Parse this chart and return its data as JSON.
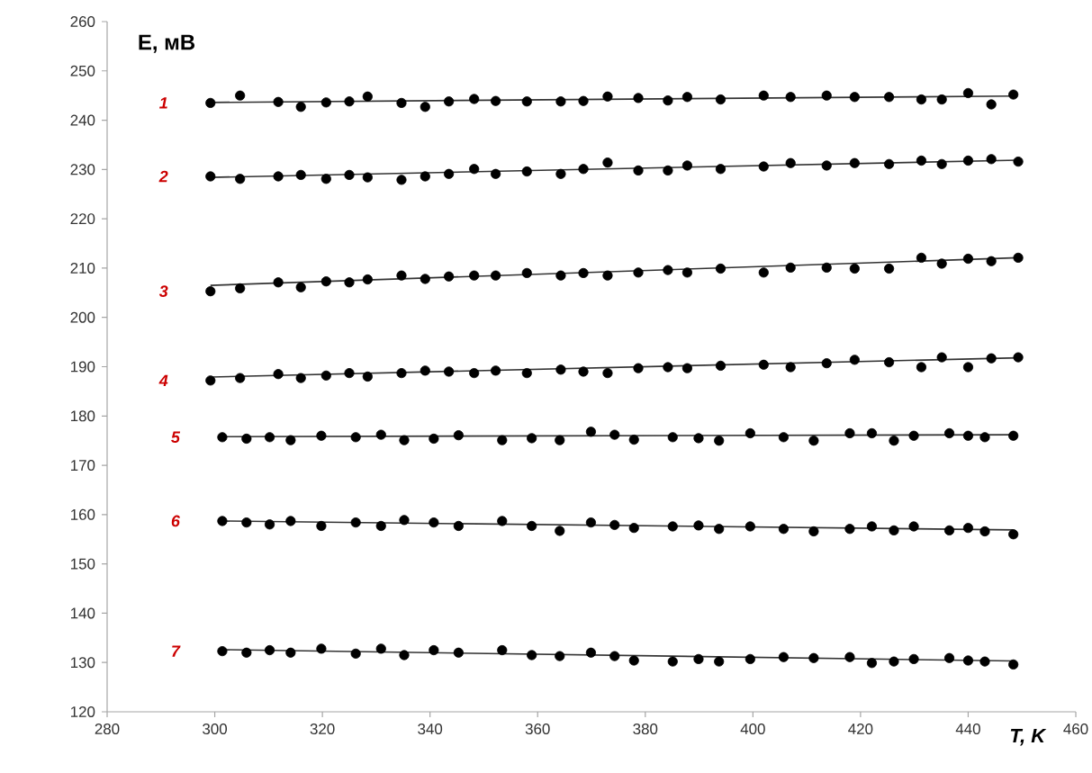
{
  "chart_data": {
    "type": "scatter",
    "xlabel": "T,  K",
    "ylabel": "E, мВ",
    "xlim": [
      280,
      460
    ],
    "ylim": [
      120,
      260
    ],
    "xticks": [
      280,
      300,
      320,
      340,
      360,
      380,
      400,
      420,
      440,
      460
    ],
    "yticks": [
      120,
      130,
      140,
      150,
      160,
      170,
      180,
      190,
      200,
      210,
      220,
      230,
      240,
      250,
      260
    ],
    "series": [
      {
        "name": "1",
        "color": "#000000",
        "marker": "circle",
        "x": [
          299.2,
          304.7,
          311.8,
          316.0,
          320.7,
          325.0,
          328.4,
          334.7,
          339.1,
          343.5,
          348.2,
          352.2,
          358.0,
          364.3,
          368.5,
          373.0,
          378.7,
          384.2,
          387.8,
          394.0,
          402.0,
          407.0,
          413.7,
          418.9,
          425.3,
          431.3,
          435.1,
          440.0,
          444.3,
          448.4
        ],
        "values": [
          243.5,
          245.0,
          243.7,
          242.7,
          243.6,
          243.8,
          244.8,
          243.5,
          242.7,
          243.8,
          244.3,
          243.9,
          243.8,
          243.8,
          243.9,
          244.8,
          244.5,
          244.0,
          244.7,
          244.2,
          245.0,
          244.7,
          245.0,
          244.7,
          244.7,
          244.2,
          244.2,
          245.5,
          243.2,
          245.2
        ]
      },
      {
        "name": "2",
        "color": "#000000",
        "marker": "circle",
        "x": [
          299.2,
          304.7,
          311.8,
          316.0,
          320.7,
          325.0,
          328.4,
          334.7,
          339.1,
          343.5,
          348.2,
          352.2,
          358.0,
          364.3,
          368.5,
          373.0,
          378.7,
          384.2,
          387.8,
          394.0,
          402.0,
          407.0,
          413.7,
          418.9,
          425.3,
          431.3,
          435.1,
          440.0,
          444.3,
          449.3
        ],
        "values": [
          228.6,
          228.1,
          228.6,
          228.9,
          228.1,
          228.9,
          228.4,
          227.9,
          228.6,
          229.1,
          230.1,
          229.1,
          229.6,
          229.1,
          230.1,
          231.4,
          229.8,
          229.8,
          230.8,
          230.1,
          230.6,
          231.3,
          230.8,
          231.3,
          231.1,
          231.8,
          231.1,
          231.8,
          232.1,
          231.6
        ]
      },
      {
        "name": "3",
        "color": "#000000",
        "marker": "circle",
        "x": [
          299.2,
          304.7,
          311.8,
          316.0,
          320.7,
          325.0,
          328.4,
          334.7,
          339.1,
          343.5,
          348.2,
          352.2,
          358.0,
          364.3,
          368.5,
          373.0,
          378.7,
          384.2,
          387.8,
          394.0,
          402.0,
          407.0,
          413.7,
          418.9,
          425.3,
          431.3,
          435.1,
          440.0,
          444.3,
          449.3
        ],
        "values": [
          205.3,
          205.9,
          207.1,
          206.1,
          207.3,
          207.1,
          207.7,
          208.5,
          207.8,
          208.3,
          208.5,
          208.5,
          209.0,
          208.5,
          209.0,
          208.5,
          209.1,
          209.6,
          209.1,
          209.9,
          209.1,
          210.1,
          210.1,
          209.9,
          209.9,
          212.1,
          210.9,
          211.9,
          211.4,
          212.1
        ]
      },
      {
        "name": "4",
        "color": "#000000",
        "marker": "circle",
        "x": [
          299.2,
          304.7,
          311.8,
          316.0,
          320.7,
          325.0,
          328.4,
          334.7,
          339.1,
          343.5,
          348.2,
          352.2,
          358.0,
          364.3,
          368.5,
          373.0,
          378.7,
          384.2,
          387.8,
          394.0,
          402.0,
          407.0,
          413.7,
          418.9,
          425.3,
          431.3,
          435.1,
          440.0,
          444.3,
          449.3
        ],
        "values": [
          187.2,
          187.7,
          188.5,
          187.7,
          188.2,
          188.7,
          188.0,
          188.7,
          189.2,
          189.0,
          188.7,
          189.2,
          188.7,
          189.4,
          189.0,
          188.7,
          189.7,
          189.9,
          189.7,
          190.2,
          190.4,
          189.9,
          190.7,
          191.4,
          190.9,
          189.9,
          191.9,
          189.9,
          191.7,
          191.9
        ]
      },
      {
        "name": "5",
        "color": "#000000",
        "marker": "circle",
        "x": [
          301.4,
          305.9,
          310.2,
          314.1,
          319.8,
          326.2,
          330.9,
          335.2,
          340.7,
          345.3,
          353.4,
          358.9,
          364.1,
          369.9,
          374.3,
          377.9,
          385.1,
          389.9,
          393.7,
          399.5,
          405.7,
          411.3,
          418.0,
          422.1,
          426.2,
          429.9,
          436.5,
          440.0,
          443.1,
          448.4
        ],
        "values": [
          175.7,
          175.4,
          175.7,
          175.1,
          176.0,
          175.7,
          176.2,
          175.1,
          175.4,
          176.1,
          175.1,
          175.5,
          175.1,
          176.8,
          176.2,
          175.2,
          175.7,
          175.5,
          175.0,
          176.5,
          175.7,
          175.0,
          176.5,
          176.5,
          175.0,
          176.0,
          176.5,
          176.0,
          175.7,
          176.0
        ]
      },
      {
        "name": "6",
        "color": "#000000",
        "marker": "circle",
        "x": [
          301.4,
          305.9,
          310.2,
          314.1,
          319.8,
          326.2,
          330.9,
          335.2,
          340.7,
          345.3,
          353.4,
          358.9,
          364.1,
          369.9,
          374.3,
          377.9,
          385.1,
          389.9,
          393.7,
          399.5,
          405.7,
          411.3,
          418.0,
          422.1,
          426.2,
          429.9,
          436.5,
          440.0,
          443.1,
          448.4
        ],
        "values": [
          158.7,
          158.4,
          158.0,
          158.7,
          157.7,
          158.4,
          157.7,
          158.9,
          158.4,
          157.7,
          158.7,
          157.7,
          156.7,
          158.4,
          157.9,
          157.3,
          157.6,
          157.8,
          157.1,
          157.6,
          157.1,
          156.6,
          157.1,
          157.6,
          156.8,
          157.6,
          156.8,
          157.3,
          156.6,
          156.0
        ]
      },
      {
        "name": "7",
        "color": "#000000",
        "marker": "circle",
        "x": [
          301.4,
          305.9,
          310.2,
          314.1,
          319.8,
          326.2,
          330.9,
          335.2,
          340.7,
          345.3,
          353.4,
          358.9,
          364.1,
          369.9,
          374.3,
          377.9,
          385.1,
          389.9,
          393.7,
          399.5,
          405.7,
          411.3,
          418.0,
          422.1,
          426.2,
          429.9,
          436.5,
          440.0,
          443.1,
          448.4
        ],
        "values": [
          132.3,
          132.0,
          132.5,
          132.0,
          132.8,
          131.8,
          132.8,
          131.5,
          132.5,
          132.0,
          132.5,
          131.5,
          131.3,
          132.0,
          131.3,
          130.4,
          130.2,
          130.7,
          130.2,
          130.7,
          131.1,
          130.9,
          131.1,
          129.9,
          130.2,
          130.7,
          130.9,
          130.4,
          130.2,
          129.6
        ]
      },
      {
        "type": "line",
        "color": "#333333",
        "x": [
          299.2,
          448.4
        ],
        "values": [
          243.6,
          244.9
        ],
        "marker": "none"
      },
      {
        "type": "line",
        "color": "#333333",
        "x": [
          299.2,
          449.3
        ],
        "values": [
          228.4,
          231.9
        ],
        "marker": "none"
      },
      {
        "type": "line",
        "color": "#333333",
        "x": [
          299.2,
          449.3
        ],
        "values": [
          206.5,
          212.1
        ],
        "marker": "none"
      },
      {
        "type": "line",
        "color": "#333333",
        "x": [
          299.2,
          449.3
        ],
        "values": [
          187.9,
          191.8
        ],
        "marker": "none"
      },
      {
        "type": "line",
        "color": "#333333",
        "x": [
          301.4,
          448.4
        ],
        "values": [
          175.8,
          176.2
        ],
        "marker": "none"
      },
      {
        "type": "line",
        "color": "#333333",
        "x": [
          301.4,
          448.4
        ],
        "values": [
          158.7,
          156.9
        ],
        "marker": "none"
      },
      {
        "type": "line",
        "color": "#333333",
        "x": [
          301.4,
          448.4
        ],
        "values": [
          132.6,
          130.3
        ],
        "marker": "none"
      }
    ]
  }
}
